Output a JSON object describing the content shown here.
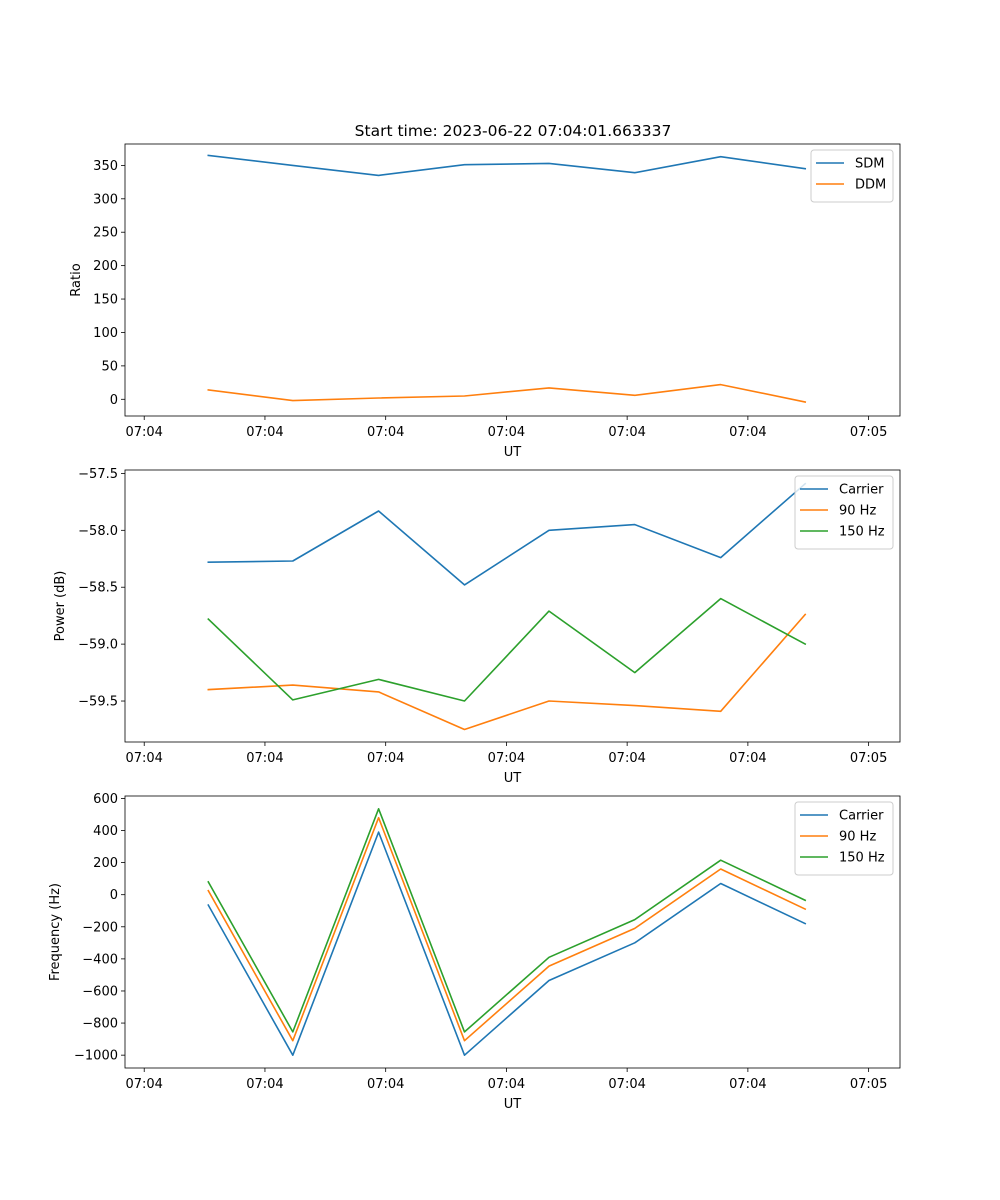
{
  "figure": {
    "title": "Start time: 2023-06-22 07:04:01.663337"
  },
  "chart_data": [
    {
      "type": "line",
      "title": "Start time: 2023-06-22 07:04:01.663337",
      "xlabel": "UT",
      "ylabel": "Ratio",
      "xticks": [
        "07:04",
        "07:04",
        "07:04",
        "07:04",
        "07:04",
        "07:04",
        "07:05"
      ],
      "xlim": [
        -0.65,
        5.4
      ],
      "ylim": [
        -25,
        382
      ],
      "yticks": [
        0,
        50,
        100,
        150,
        200,
        250,
        300,
        350
      ],
      "ytick_labels": [
        "0",
        "50",
        "100",
        "150",
        "200",
        "250",
        "300",
        "350"
      ],
      "x": [
        0,
        0.66,
        1.33,
        2,
        2.66,
        3.33,
        4,
        4.66
      ],
      "series": [
        {
          "name": "SDM",
          "color": "#1f77b4",
          "values": [
            365,
            350,
            335,
            351,
            353,
            339,
            363,
            345
          ]
        },
        {
          "name": "DDM",
          "color": "#ff7f0e",
          "values": [
            14,
            -2,
            2,
            5,
            17,
            6,
            22,
            -4
          ]
        }
      ],
      "legend": "upper right",
      "grid": false
    },
    {
      "type": "line",
      "title": "",
      "xlabel": "UT",
      "ylabel": "Power (dB)",
      "xticks": [
        "07:04",
        "07:04",
        "07:04",
        "07:04",
        "07:04",
        "07:04",
        "07:05"
      ],
      "xlim": [
        -0.65,
        5.4
      ],
      "ylim": [
        -59.86,
        -57.47
      ],
      "yticks": [
        -59.5,
        -59.0,
        -58.5,
        -58.0,
        -57.5
      ],
      "ytick_labels": [
        "−59.5",
        "−59.0",
        "−58.5",
        "−58.0",
        "−57.5"
      ],
      "x": [
        0,
        0.66,
        1.33,
        2,
        2.66,
        3.33,
        4,
        4.66
      ],
      "series": [
        {
          "name": "Carrier",
          "color": "#1f77b4",
          "values": [
            -58.28,
            -58.27,
            -57.83,
            -58.48,
            -58.0,
            -57.95,
            -58.24,
            -57.59
          ]
        },
        {
          "name": "90 Hz",
          "color": "#ff7f0e",
          "values": [
            -59.4,
            -59.36,
            -59.42,
            -59.75,
            -59.5,
            -59.54,
            -59.59,
            -58.74
          ]
        },
        {
          "name": "150 Hz",
          "color": "#2ca02c",
          "values": [
            -58.78,
            -59.49,
            -59.31,
            -59.5,
            -58.71,
            -59.25,
            -58.6,
            -59.0
          ]
        }
      ],
      "legend": "upper right",
      "grid": false
    },
    {
      "type": "line",
      "title": "",
      "xlabel": "UT",
      "ylabel": "Frequency (Hz)",
      "xticks": [
        "07:04",
        "07:04",
        "07:04",
        "07:04",
        "07:04",
        "07:04",
        "07:05"
      ],
      "xlim": [
        -0.65,
        5.4
      ],
      "ylim": [
        -1080,
        615
      ],
      "yticks": [
        -1000,
        -800,
        -600,
        -400,
        -200,
        0,
        200,
        400,
        600
      ],
      "ytick_labels": [
        "−1000",
        "−800",
        "−600",
        "−400",
        "−200",
        "0",
        "200",
        "400",
        "600"
      ],
      "x": [
        0,
        0.66,
        1.33,
        2,
        2.66,
        3.33,
        4,
        4.66
      ],
      "series": [
        {
          "name": "Carrier",
          "color": "#1f77b4",
          "values": [
            -65,
            -1000,
            390,
            -1000,
            -535,
            -300,
            70,
            -180
          ]
        },
        {
          "name": "90 Hz",
          "color": "#ff7f0e",
          "values": [
            25,
            -910,
            480,
            -910,
            -445,
            -210,
            160,
            -90
          ]
        },
        {
          "name": "150 Hz",
          "color": "#2ca02c",
          "values": [
            80,
            -855,
            535,
            -855,
            -390,
            -155,
            215,
            -35
          ]
        }
      ],
      "legend": "upper right",
      "grid": false
    }
  ]
}
